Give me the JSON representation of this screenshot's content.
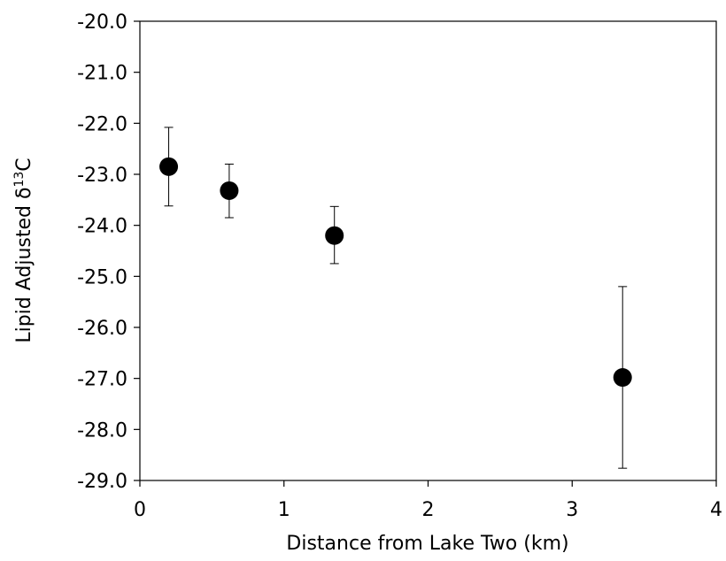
{
  "chart_data": {
    "type": "scatter",
    "title": "",
    "xlabel": "Distance from Lake Two (km)",
    "ylabel": {
      "prefix": "Lipid Adjusted δ",
      "superscript": "13",
      "suffix": "C"
    },
    "xlim": [
      0,
      4
    ],
    "ylim": [
      -29,
      -20
    ],
    "x_ticks": [
      0,
      1,
      2,
      3,
      4
    ],
    "x_tick_labels": [
      "0",
      "1",
      "2",
      "3",
      "4"
    ],
    "y_ticks": [
      -20,
      -21,
      -22,
      -23,
      -24,
      -25,
      -26,
      -27,
      -28,
      -29
    ],
    "y_tick_labels": [
      "-20.0",
      "-21.0",
      "-22.0",
      "-23.0",
      "-24.0",
      "-25.0",
      "-26.0",
      "-27.0",
      "-28.0",
      "-29.0"
    ],
    "grid": false,
    "legend": "none",
    "series": [
      {
        "color": "#000000",
        "points": [
          {
            "x": 0.2,
            "y": -22.85,
            "err_low": -23.62,
            "err_high": -22.08
          },
          {
            "x": 0.62,
            "y": -23.32,
            "err_low": -23.85,
            "err_high": -22.8
          },
          {
            "x": 1.35,
            "y": -24.2,
            "err_low": -24.75,
            "err_high": -23.63
          },
          {
            "x": 3.35,
            "y": -26.98,
            "err_low": -28.76,
            "err_high": -25.2
          }
        ]
      }
    ]
  }
}
